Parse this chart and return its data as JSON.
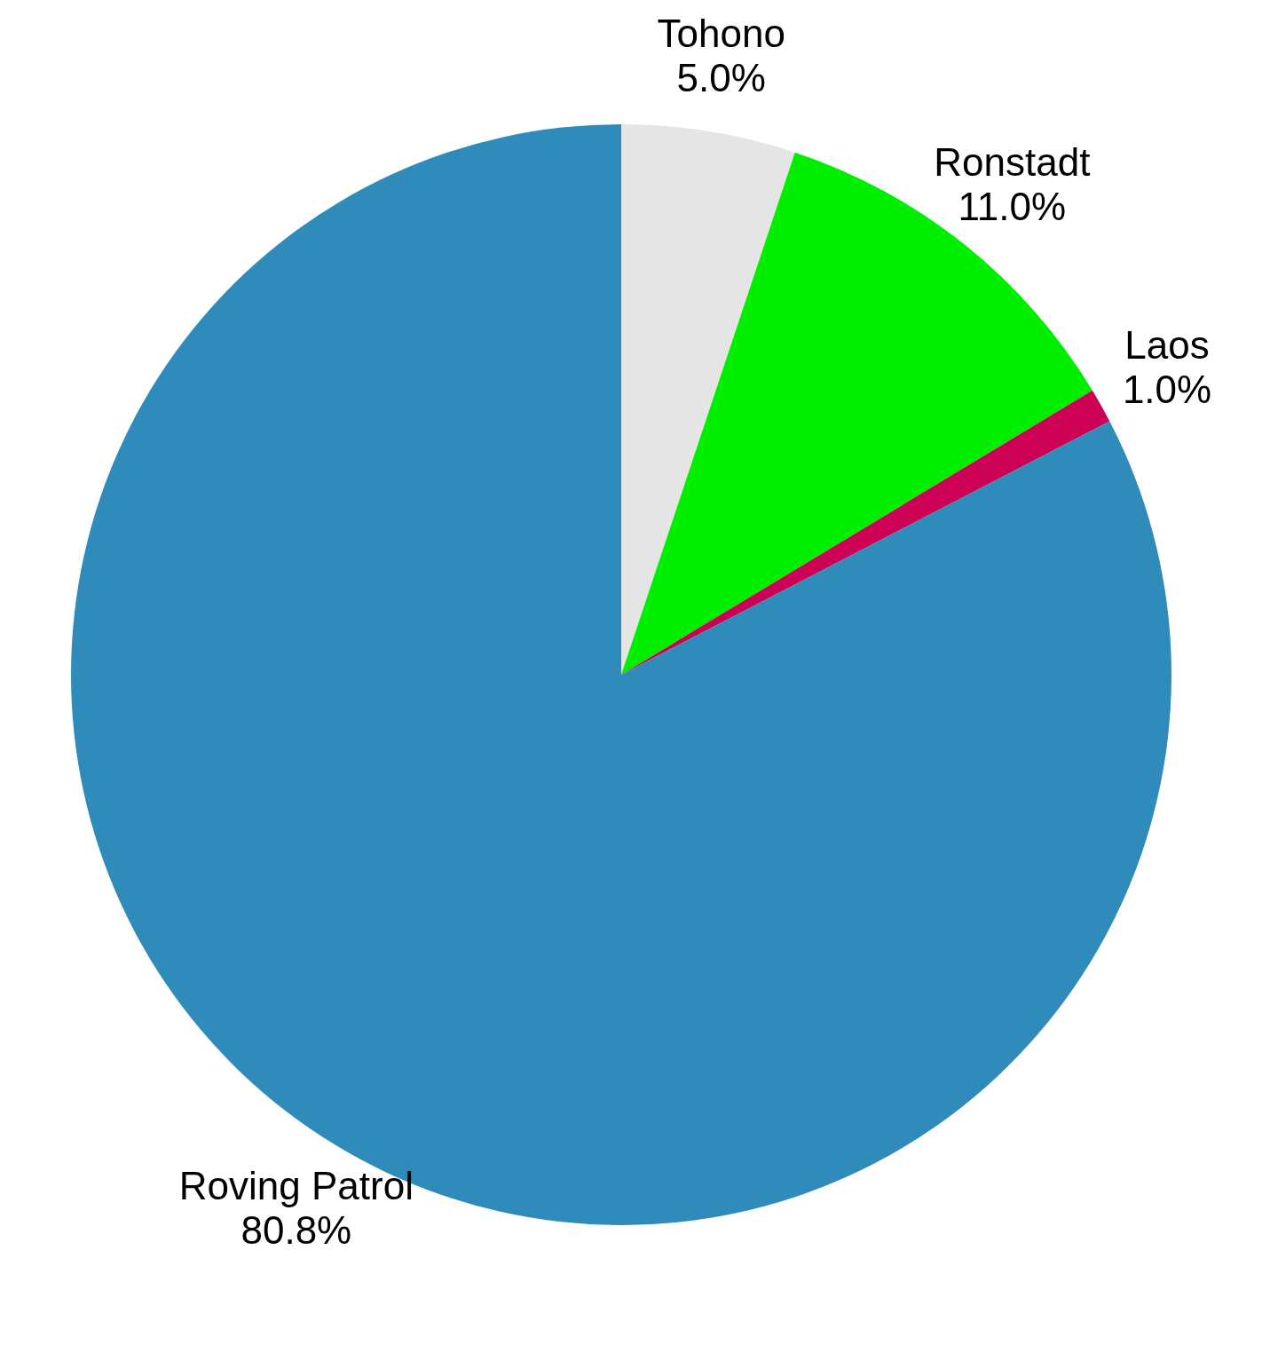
{
  "chart_data": {
    "type": "pie",
    "categories": [
      "Tohono",
      "Ronstadt",
      "Laos",
      "Roving Patrol"
    ],
    "values": [
      5.0,
      11.0,
      1.0,
      80.8
    ],
    "colors": [
      "#e5e5e5",
      "#00ee00",
      "#cc0055",
      "#2e8bba"
    ],
    "value_labels": [
      "5.0%",
      "11.0%",
      "1.0%",
      "80.8%"
    ],
    "legend": false
  }
}
